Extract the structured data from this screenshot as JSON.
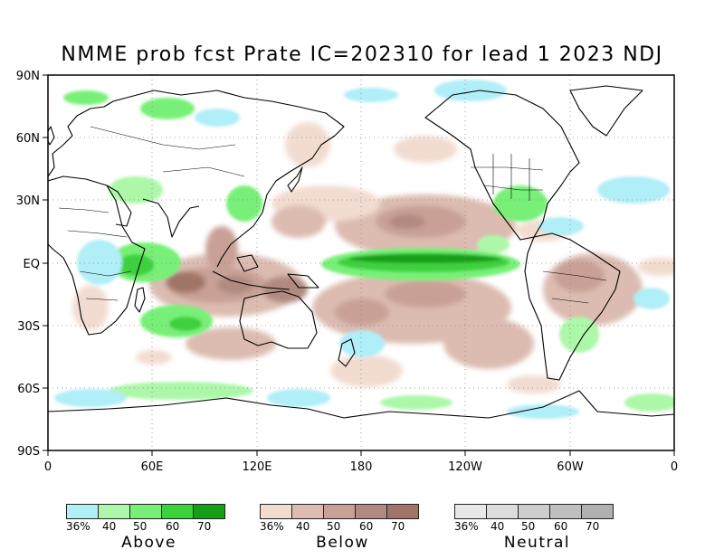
{
  "title": "NMME prob fcst Prate IC=202310 for lead 1 2023 NDJ",
  "map": {
    "lat_labels": [
      "90N",
      "60N",
      "30N",
      "EQ",
      "30S",
      "60S",
      "90S"
    ],
    "lon_labels": [
      "0",
      "60E",
      "120E",
      "180",
      "120W",
      "60W",
      "0"
    ]
  },
  "colors": {
    "above": [
      "#b0eef8",
      "#acf8a8",
      "#78f078",
      "#3cd23c",
      "#14a014"
    ],
    "below": [
      "#f2dcd0",
      "#dcbcb0",
      "#c8a096",
      "#b08a80",
      "#a07468"
    ],
    "neutral": [
      "#e8e8e8",
      "#dcdcdc",
      "#cdcdcd",
      "#bfbfbf",
      "#b0b0b0"
    ]
  },
  "legends": {
    "above": {
      "name": "Above",
      "labels": [
        "36%",
        "40",
        "50",
        "60",
        "70"
      ]
    },
    "below": {
      "name": "Below",
      "labels": [
        "36%",
        "40",
        "50",
        "60",
        "70"
      ]
    },
    "neutral": {
      "name": "Neutral",
      "labels": [
        "36%",
        "40",
        "50",
        "60",
        "70"
      ]
    }
  }
}
